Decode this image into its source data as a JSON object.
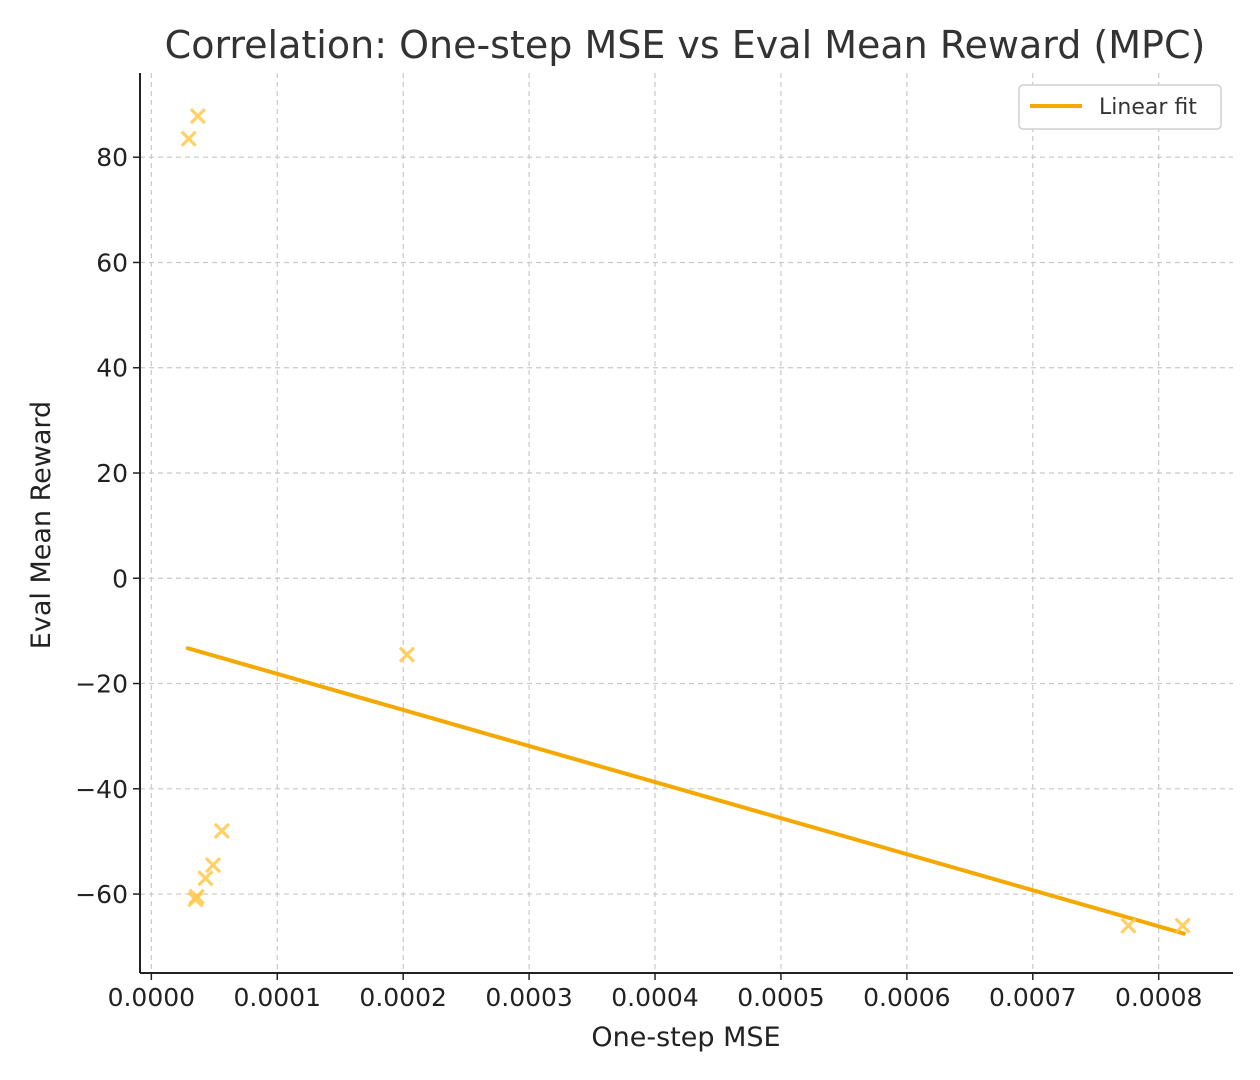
{
  "chart_data": {
    "type": "scatter",
    "title": "Correlation: One-step MSE vs Eval Mean Reward (MPC)",
    "xlabel": "One-step MSE",
    "ylabel": "Eval Mean Reward",
    "xlim": [
      -9e-06,
      0.000859
    ],
    "ylim": [
      -75,
      96
    ],
    "xticks": [
      0.0,
      0.0001,
      0.0002,
      0.0003,
      0.0004,
      0.0005,
      0.0006,
      0.0007,
      0.0008
    ],
    "xtick_labels": [
      "0.0000",
      "0.0001",
      "0.0002",
      "0.0003",
      "0.0004",
      "0.0005",
      "0.0006",
      "0.0007",
      "0.0008"
    ],
    "yticks": [
      -60,
      -40,
      -20,
      0,
      20,
      40,
      60,
      80
    ],
    "ytick_labels": [
      "−60",
      "−40",
      "−20",
      "0",
      "20",
      "40",
      "60",
      "80"
    ],
    "grid": true,
    "legend_position": "top-right",
    "points": {
      "color": "#FFC84A",
      "marker": "x",
      "x": [
        2.97e-05,
        3.7e-05,
        0.000203,
        5.6e-05,
        4.9e-05,
        4.3e-05,
        3.6e-05,
        3.5e-05,
        0.000776,
        0.000819
      ],
      "y": [
        83.5,
        87.8,
        -14.5,
        -48.0,
        -54.5,
        -57.0,
        -60.5,
        -61.0,
        -66.0,
        -66.0
      ]
    },
    "series": [
      {
        "name": "Linear fit",
        "type": "line",
        "color": "#F5A800",
        "x": [
          2.9e-05,
          0.00082
        ],
        "y": [
          -13.3,
          -67.5
        ]
      }
    ]
  }
}
